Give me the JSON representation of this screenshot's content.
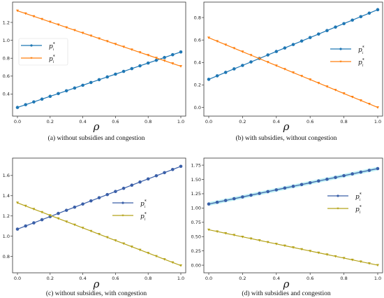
{
  "colors": {
    "blue": "#1f77b4",
    "orange": "#ff7f0e",
    "olive": "#b5a31a",
    "blue_dark": "#3a5fa8",
    "halo": "#9fe8f0"
  },
  "chart_data": [
    {
      "type": "line",
      "caption": "(a) without subsidies and congestion",
      "xlabel": "ρ",
      "xlim": [
        0.0,
        1.0
      ],
      "ylim": [
        0.2,
        1.38
      ],
      "xticks": [
        "0.0",
        "0.2",
        "0.4",
        "0.6",
        "0.8",
        "1.0"
      ],
      "yticks": [
        "0.4",
        "0.6",
        "0.8",
        "1.0",
        "1.2"
      ],
      "legend": "center-left",
      "legend_box": true,
      "series": [
        {
          "name_base": "p",
          "name_sup": "*",
          "name_sub": "i",
          "color_key": "blue",
          "start": 0.25,
          "end": 0.87
        },
        {
          "name_base": "p",
          "name_sup": "*",
          "name_sub": "l",
          "color_key": "orange",
          "start": 1.33,
          "end": 0.71
        }
      ]
    },
    {
      "type": "line",
      "caption": "(b) with subsidies, without congestion",
      "xlabel": "ρ",
      "xlim": [
        0.0,
        1.0
      ],
      "ylim": [
        -0.04,
        0.9
      ],
      "xticks": [
        "0.0",
        "0.2",
        "0.4",
        "0.6",
        "0.8",
        "1.0"
      ],
      "yticks": [
        "0.0",
        "0.2",
        "0.4",
        "0.6",
        "0.8"
      ],
      "legend": "center-right",
      "legend_box": false,
      "series": [
        {
          "name_base": "p",
          "name_sup": "*",
          "name_sub": "i",
          "color_key": "blue",
          "start": 0.25,
          "end": 0.87
        },
        {
          "name_base": "p",
          "name_sup": "*",
          "name_sub": "l",
          "color_key": "orange",
          "start": 0.62,
          "end": 0.0
        }
      ]
    },
    {
      "type": "line",
      "caption": "(c) without subsidies, with congestion",
      "xlabel": "ρ",
      "xlim": [
        0.0,
        1.0
      ],
      "ylim": [
        0.68,
        1.73
      ],
      "xticks": [
        "0.0",
        "0.2",
        "0.4",
        "0.6",
        "0.8",
        "1.0"
      ],
      "yticks": [
        "0.8",
        "1.0",
        "1.2",
        "1.4",
        "1.6"
      ],
      "legend": "center-right",
      "legend_box": false,
      "series": [
        {
          "name_base": "p",
          "name_sup": "*",
          "name_sub": "i",
          "color_key": "blue_dark",
          "start": 1.07,
          "end": 1.69
        },
        {
          "name_base": "p",
          "name_sup": "*",
          "name_sub": "l",
          "color_key": "olive",
          "start": 1.33,
          "end": 0.71
        }
      ]
    },
    {
      "type": "line",
      "caption": "(d) with subsidies and congestion",
      "xlabel": "ρ",
      "xlim": [
        0.0,
        1.0
      ],
      "ylim": [
        -0.06,
        1.8
      ],
      "xticks": [
        "0.0",
        "0.2",
        "0.4",
        "0.6",
        "0.8",
        "1.0"
      ],
      "yticks": [
        "0.00",
        "0.25",
        "0.50",
        "0.75",
        "1.00",
        "1.25",
        "1.50",
        "1.75"
      ],
      "legend": "center-right",
      "legend_box": false,
      "series": [
        {
          "name_base": "p",
          "name_sup": "*",
          "name_sub": "i",
          "color_key": "blue_dark",
          "start": 1.07,
          "end": 1.69,
          "halo": true
        },
        {
          "name_base": "p",
          "name_sup": "*",
          "name_sub": "l",
          "color_key": "olive",
          "start": 0.62,
          "end": 0.0
        }
      ]
    }
  ]
}
